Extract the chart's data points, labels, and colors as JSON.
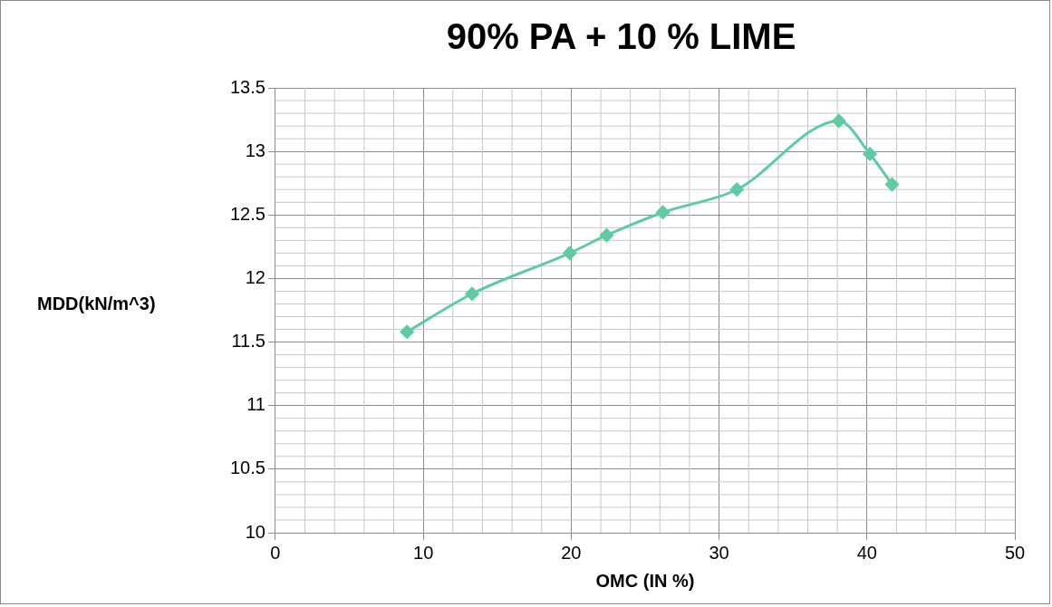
{
  "chart_data": {
    "type": "line",
    "title": "90% PA + 10 % LIME",
    "xlabel": "OMC (IN %)",
    "ylabel": "MDD(kN/m^3)",
    "x": [
      8.9,
      13.3,
      19.9,
      22.4,
      26.2,
      31.2,
      38.1,
      40.2,
      41.7
    ],
    "series": [
      {
        "color": "#5ecba1",
        "values": [
          11.58,
          11.88,
          12.2,
          12.34,
          12.52,
          12.7,
          13.24,
          12.98,
          12.74
        ]
      }
    ],
    "xlim": [
      0,
      50
    ],
    "xticks": [
      0,
      10,
      20,
      30,
      40,
      50
    ],
    "ylim": [
      10,
      13.5
    ],
    "yticks": [
      10,
      10.5,
      11,
      11.5,
      12,
      12.5,
      13,
      13.5
    ],
    "grid": true,
    "legend": false,
    "marker": "diamond",
    "line_style": "solid"
  }
}
